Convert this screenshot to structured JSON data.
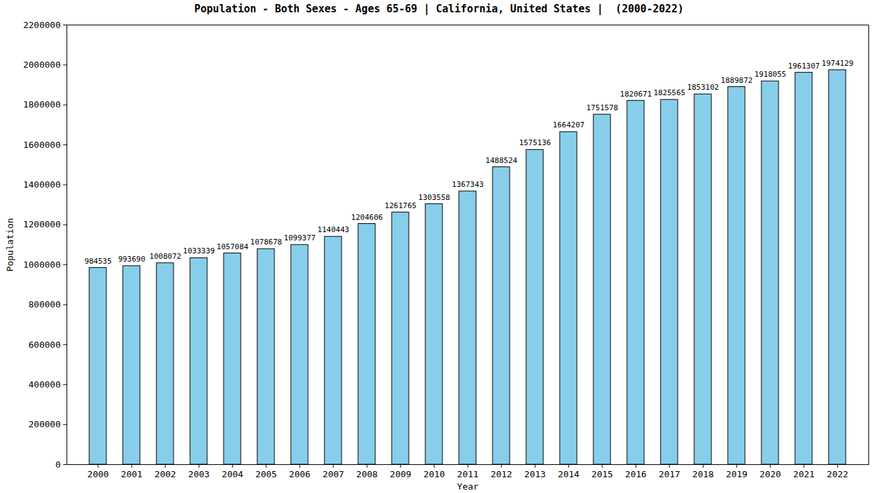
{
  "chart_data": {
    "type": "bar",
    "title": "Population - Both Sexes - Ages 65-69 | California, United States |  (2000-2022)",
    "x_label": "Year",
    "y_label": "Population",
    "categories": [
      "2000",
      "2001",
      "2002",
      "2003",
      "2004",
      "2005",
      "2006",
      "2007",
      "2008",
      "2009",
      "2010",
      "2011",
      "2012",
      "2013",
      "2014",
      "2015",
      "2016",
      "2017",
      "2018",
      "2019",
      "2020",
      "2021",
      "2022"
    ],
    "values": [
      984535,
      993690,
      1008072,
      1033339,
      1057084,
      1078678,
      1099377,
      1140443,
      1204606,
      1261765,
      1303558,
      1367343,
      1488524,
      1575136,
      1664207,
      1751578,
      1820671,
      1825565,
      1853102,
      1889872,
      1918055,
      1961307,
      1974129
    ],
    "color": "#87ceeb",
    "ylim": [
      0,
      2200000
    ],
    "yticks": [
      0,
      200000,
      400000,
      600000,
      800000,
      1000000,
      1200000,
      1400000,
      1600000,
      1800000,
      2000000,
      2200000
    ],
    "grid": false,
    "data_labels": true
  }
}
